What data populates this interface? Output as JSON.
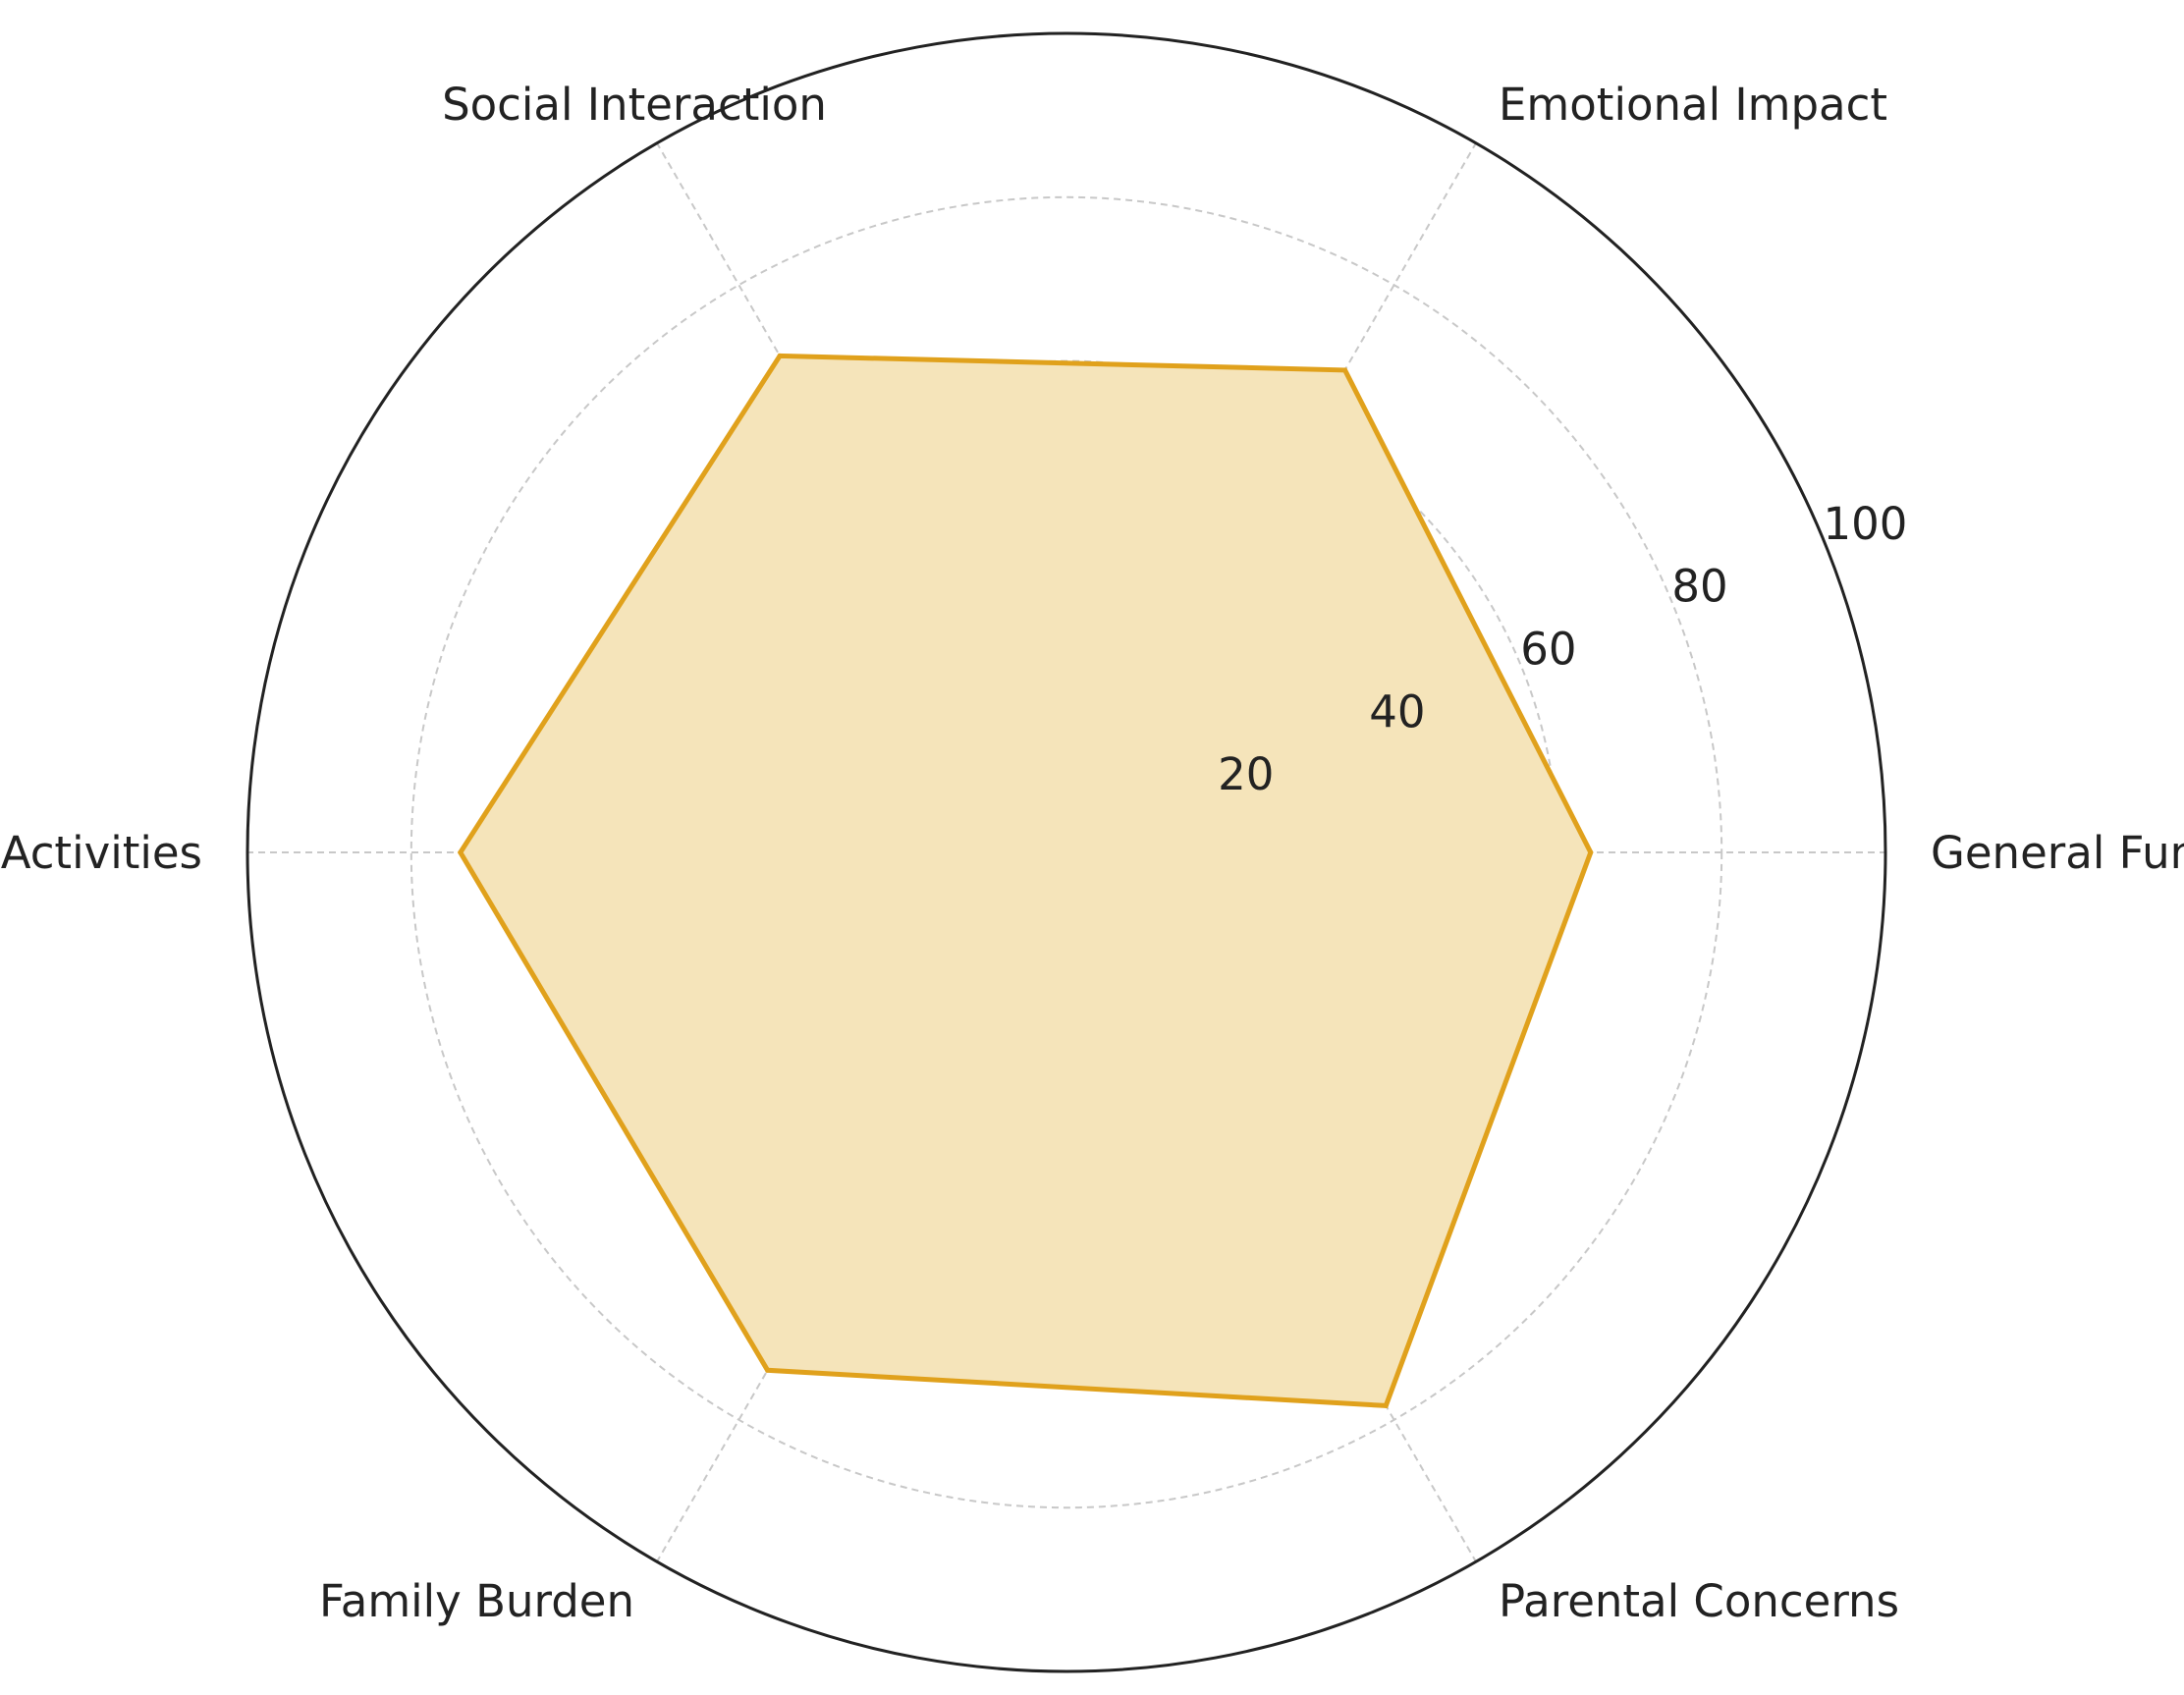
{
  "chart_data": {
    "type": "radar",
    "title": "",
    "axes": [
      "General Functioning",
      "Emotional Impact",
      "Social Interaction",
      "Daily Activities",
      "Family Burden",
      "Parental Concerns"
    ],
    "series": [
      {
        "name": "",
        "values": [
          64,
          68,
          70,
          74,
          73,
          78
        ]
      }
    ],
    "rlim": [
      0,
      100
    ],
    "rticks": [
      20,
      40,
      60,
      80,
      100
    ],
    "rtick_labels": [
      "20",
      "40",
      "60",
      "80",
      "100"
    ],
    "grid": true,
    "colors": {
      "line": "#E0A11C",
      "fill": "#F5E4BA",
      "grid": "#c8c8c8",
      "frame": "#222222",
      "text": "#222222"
    }
  }
}
